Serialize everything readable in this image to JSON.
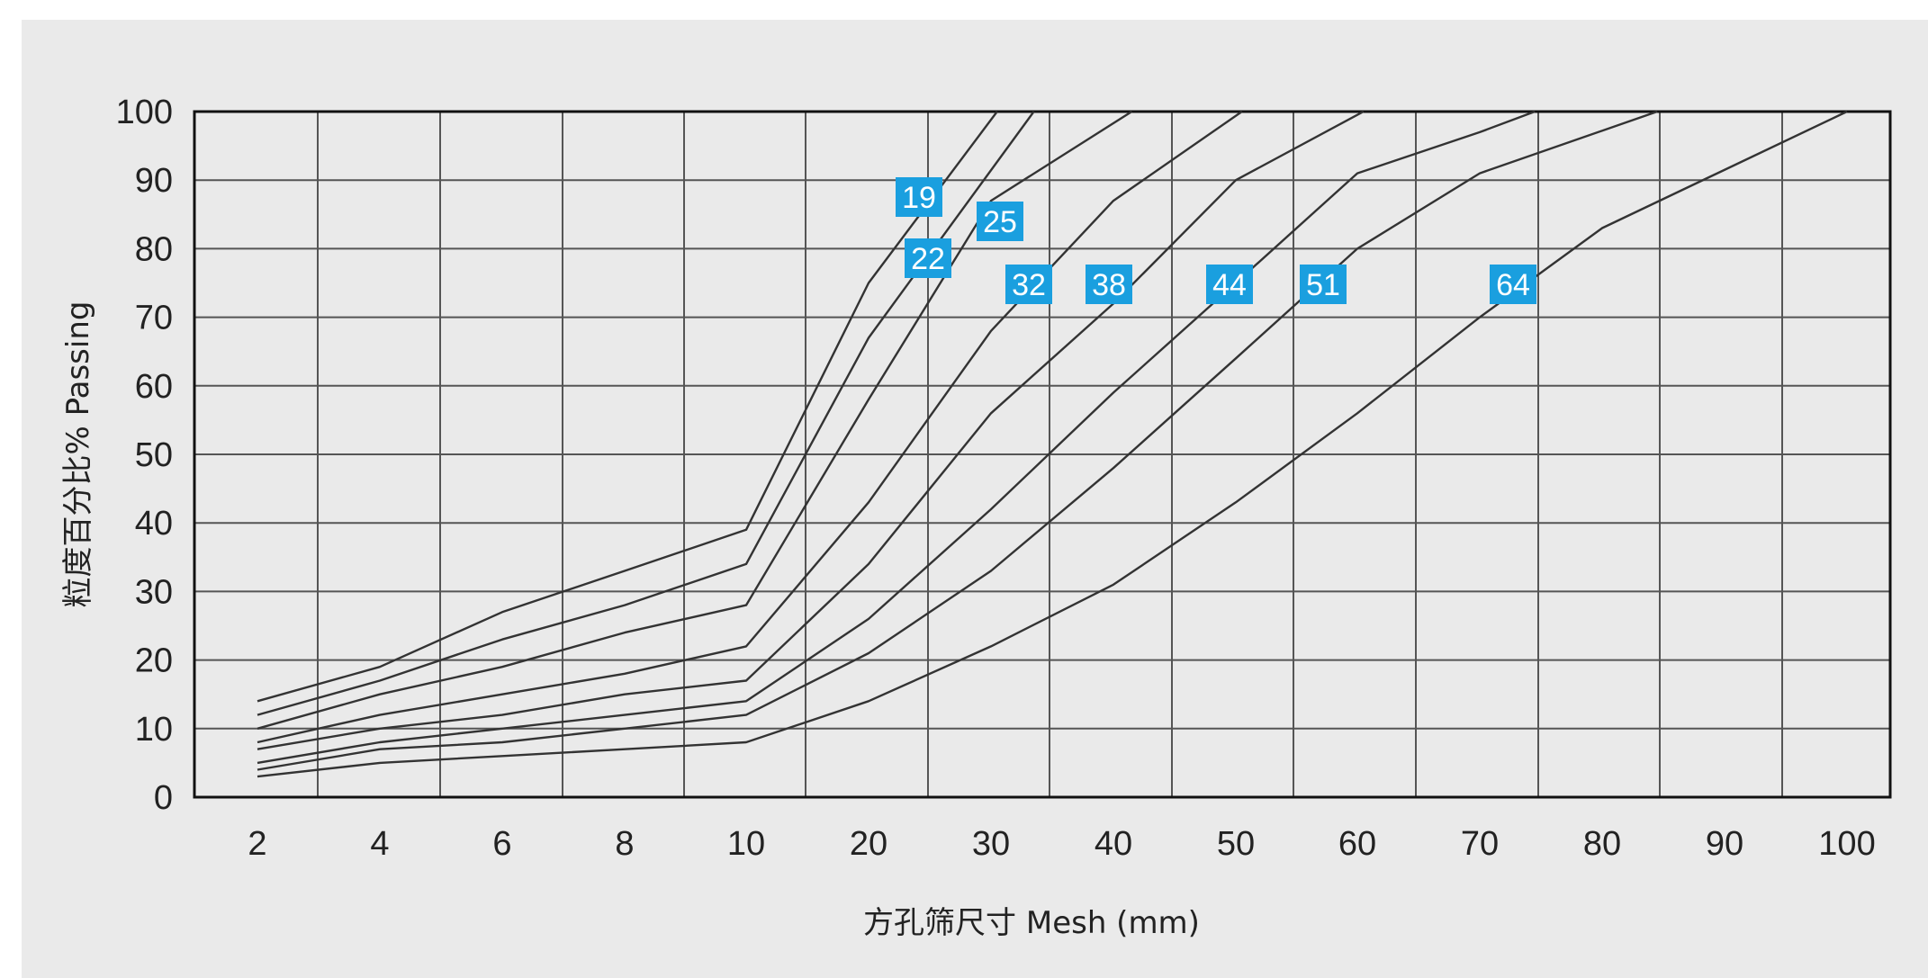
{
  "chart_data": {
    "type": "line",
    "title": "",
    "xlabel": "方孔筛尺寸  Mesh (mm)",
    "ylabel": "粒度百分比%  Passing",
    "ylim": [
      0,
      100
    ],
    "grid": true,
    "x_categories": [
      "2",
      "4",
      "6",
      "8",
      "10",
      "20",
      "30",
      "40",
      "50",
      "60",
      "70",
      "80",
      "90",
      "100"
    ],
    "y_ticks": [
      "0",
      "10",
      "20",
      "30",
      "40",
      "50",
      "60",
      "70",
      "80",
      "90",
      "100"
    ],
    "label_color": "#1a9fdf",
    "line_color": "#333333",
    "series": [
      {
        "name": "19",
        "x": [
          2,
          4,
          6,
          8,
          10,
          20,
          30.5
        ],
        "y": [
          14,
          19,
          27,
          33,
          39,
          75,
          100
        ]
      },
      {
        "name": "22",
        "x": [
          2,
          4,
          6,
          8,
          10,
          20,
          33.5
        ],
        "y": [
          12,
          17,
          23,
          28,
          34,
          67,
          100
        ]
      },
      {
        "name": "25",
        "x": [
          2,
          4,
          6,
          8,
          10,
          20,
          30,
          41.5
        ],
        "y": [
          10,
          15,
          19,
          24,
          28,
          58,
          87,
          100
        ]
      },
      {
        "name": "32",
        "x": [
          2,
          4,
          6,
          8,
          10,
          20,
          30,
          40,
          50.5
        ],
        "y": [
          8,
          12,
          15,
          18,
          22,
          43,
          68,
          87,
          100
        ]
      },
      {
        "name": "38",
        "x": [
          2,
          4,
          6,
          8,
          10,
          20,
          30,
          40,
          50,
          60.5
        ],
        "y": [
          7,
          10,
          12,
          15,
          17,
          34,
          56,
          72,
          90,
          100
        ]
      },
      {
        "name": "44",
        "x": [
          2,
          4,
          6,
          8,
          10,
          20,
          30,
          40,
          50,
          60,
          70,
          74.5
        ],
        "y": [
          5,
          8,
          10,
          12,
          14,
          26,
          42,
          59,
          75,
          91,
          97,
          100
        ]
      },
      {
        "name": "51",
        "x": [
          2,
          4,
          6,
          8,
          10,
          20,
          30,
          40,
          50,
          60,
          70,
          84.5
        ],
        "y": [
          4,
          7,
          8,
          10,
          12,
          21,
          33,
          48,
          64,
          80,
          91,
          100
        ]
      },
      {
        "name": "64",
        "x": [
          2,
          4,
          6,
          8,
          10,
          20,
          30,
          40,
          50,
          60,
          70,
          80,
          100
        ],
        "y": [
          3,
          5,
          6,
          7,
          8,
          14,
          22,
          31,
          43,
          56,
          70,
          83,
          100
        ]
      }
    ]
  }
}
